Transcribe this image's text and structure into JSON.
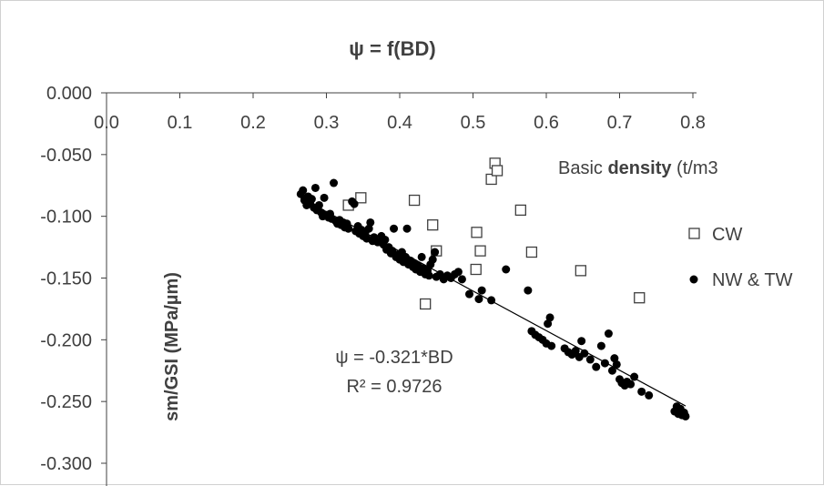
{
  "chart_data": {
    "type": "scatter",
    "title": "ψ = f(BD)",
    "xlabel_prefix": "Basic ",
    "xlabel_bold": "density",
    "xlabel_suffix": " (t/m3",
    "ylabel": "sm/GSI (MPa/µm)",
    "xlim": [
      0,
      0.8
    ],
    "ylim": [
      -0.3,
      0
    ],
    "x_ticks": [
      "0.0",
      "0.1",
      "0.2",
      "0.3",
      "0.4",
      "0.5",
      "0.6",
      "0.7",
      "0.8"
    ],
    "y_ticks": [
      "0.000",
      "-0.050",
      "-0.100",
      "-0.150",
      "-0.200",
      "-0.250",
      "-0.300"
    ],
    "legend_position": "right",
    "grid": false,
    "equation": "ψ = -0.321*BD",
    "r_squared": "R² = 0.9726",
    "trendline": {
      "slope": -0.321,
      "x_range": [
        0.265,
        0.79
      ]
    },
    "series": [
      {
        "name": "CW",
        "marker": "open-square",
        "points": [
          [
            0.33,
            -0.091
          ],
          [
            0.347,
            -0.085
          ],
          [
            0.42,
            -0.087
          ],
          [
            0.435,
            -0.171
          ],
          [
            0.445,
            -0.107
          ],
          [
            0.45,
            -0.128
          ],
          [
            0.504,
            -0.143
          ],
          [
            0.505,
            -0.113
          ],
          [
            0.51,
            -0.128
          ],
          [
            0.525,
            -0.07
          ],
          [
            0.53,
            -0.057
          ],
          [
            0.533,
            -0.063
          ],
          [
            0.565,
            -0.095
          ],
          [
            0.58,
            -0.129
          ],
          [
            0.647,
            -0.144
          ],
          [
            0.727,
            -0.166
          ]
        ]
      },
      {
        "name": "NW & TW",
        "marker": "filled-circle",
        "points": [
          [
            0.265,
            -0.082
          ],
          [
            0.268,
            -0.079
          ],
          [
            0.27,
            -0.087
          ],
          [
            0.273,
            -0.091
          ],
          [
            0.275,
            -0.084
          ],
          [
            0.278,
            -0.09
          ],
          [
            0.28,
            -0.086
          ],
          [
            0.283,
            -0.093
          ],
          [
            0.285,
            -0.077
          ],
          [
            0.287,
            -0.095
          ],
          [
            0.29,
            -0.091
          ],
          [
            0.293,
            -0.097
          ],
          [
            0.295,
            -0.1
          ],
          [
            0.297,
            -0.085
          ],
          [
            0.3,
            -0.099
          ],
          [
            0.303,
            -0.101
          ],
          [
            0.305,
            -0.098
          ],
          [
            0.307,
            -0.102
          ],
          [
            0.31,
            -0.073
          ],
          [
            0.313,
            -0.104
          ],
          [
            0.315,
            -0.106
          ],
          [
            0.318,
            -0.103
          ],
          [
            0.32,
            -0.107
          ],
          [
            0.323,
            -0.105
          ],
          [
            0.325,
            -0.109
          ],
          [
            0.328,
            -0.106
          ],
          [
            0.33,
            -0.11
          ],
          [
            0.335,
            -0.088
          ],
          [
            0.338,
            -0.09
          ],
          [
            0.34,
            -0.112
          ],
          [
            0.343,
            -0.108
          ],
          [
            0.345,
            -0.114
          ],
          [
            0.348,
            -0.111
          ],
          [
            0.35,
            -0.116
          ],
          [
            0.353,
            -0.113
          ],
          [
            0.355,
            -0.118
          ],
          [
            0.358,
            -0.11
          ],
          [
            0.36,
            -0.105
          ],
          [
            0.363,
            -0.12
          ],
          [
            0.365,
            -0.117
          ],
          [
            0.37,
            -0.121
          ],
          [
            0.375,
            -0.116
          ],
          [
            0.378,
            -0.123
          ],
          [
            0.38,
            -0.119
          ],
          [
            0.382,
            -0.127
          ],
          [
            0.385,
            -0.125
          ],
          [
            0.388,
            -0.13
          ],
          [
            0.39,
            -0.128
          ],
          [
            0.392,
            -0.11
          ],
          [
            0.395,
            -0.133
          ],
          [
            0.398,
            -0.131
          ],
          [
            0.4,
            -0.135
          ],
          [
            0.403,
            -0.129
          ],
          [
            0.405,
            -0.137
          ],
          [
            0.408,
            -0.133
          ],
          [
            0.41,
            -0.11
          ],
          [
            0.412,
            -0.139
          ],
          [
            0.415,
            -0.136
          ],
          [
            0.418,
            -0.141
          ],
          [
            0.42,
            -0.138
          ],
          [
            0.422,
            -0.143
          ],
          [
            0.425,
            -0.14
          ],
          [
            0.428,
            -0.145
          ],
          [
            0.43,
            -0.133
          ],
          [
            0.432,
            -0.142
          ],
          [
            0.435,
            -0.147
          ],
          [
            0.438,
            -0.144
          ],
          [
            0.44,
            -0.148
          ],
          [
            0.442,
            -0.139
          ],
          [
            0.445,
            -0.135
          ],
          [
            0.448,
            -0.129
          ],
          [
            0.45,
            -0.149
          ],
          [
            0.455,
            -0.147
          ],
          [
            0.46,
            -0.151
          ],
          [
            0.465,
            -0.148
          ],
          [
            0.47,
            -0.15
          ],
          [
            0.475,
            -0.147
          ],
          [
            0.48,
            -0.145
          ],
          [
            0.485,
            -0.151
          ],
          [
            0.495,
            -0.163
          ],
          [
            0.508,
            -0.167
          ],
          [
            0.512,
            -0.16
          ],
          [
            0.525,
            -0.168
          ],
          [
            0.545,
            -0.143
          ],
          [
            0.575,
            -0.16
          ],
          [
            0.58,
            -0.193
          ],
          [
            0.585,
            -0.196
          ],
          [
            0.59,
            -0.198
          ],
          [
            0.595,
            -0.2
          ],
          [
            0.6,
            -0.203
          ],
          [
            0.602,
            -0.187
          ],
          [
            0.605,
            -0.182
          ],
          [
            0.607,
            -0.205
          ],
          [
            0.625,
            -0.207
          ],
          [
            0.63,
            -0.21
          ],
          [
            0.635,
            -0.212
          ],
          [
            0.64,
            -0.209
          ],
          [
            0.645,
            -0.214
          ],
          [
            0.648,
            -0.201
          ],
          [
            0.652,
            -0.211
          ],
          [
            0.66,
            -0.216
          ],
          [
            0.668,
            -0.222
          ],
          [
            0.675,
            -0.205
          ],
          [
            0.68,
            -0.219
          ],
          [
            0.685,
            -0.195
          ],
          [
            0.69,
            -0.225
          ],
          [
            0.693,
            -0.215
          ],
          [
            0.696,
            -0.22
          ],
          [
            0.7,
            -0.232
          ],
          [
            0.703,
            -0.235
          ],
          [
            0.707,
            -0.237
          ],
          [
            0.71,
            -0.234
          ],
          [
            0.715,
            -0.236
          ],
          [
            0.72,
            -0.23
          ],
          [
            0.73,
            -0.242
          ],
          [
            0.74,
            -0.245
          ],
          [
            0.775,
            -0.258
          ],
          [
            0.778,
            -0.254
          ],
          [
            0.78,
            -0.26
          ],
          [
            0.783,
            -0.256
          ],
          [
            0.785,
            -0.261
          ],
          [
            0.788,
            -0.259
          ],
          [
            0.79,
            -0.262
          ]
        ]
      }
    ]
  }
}
